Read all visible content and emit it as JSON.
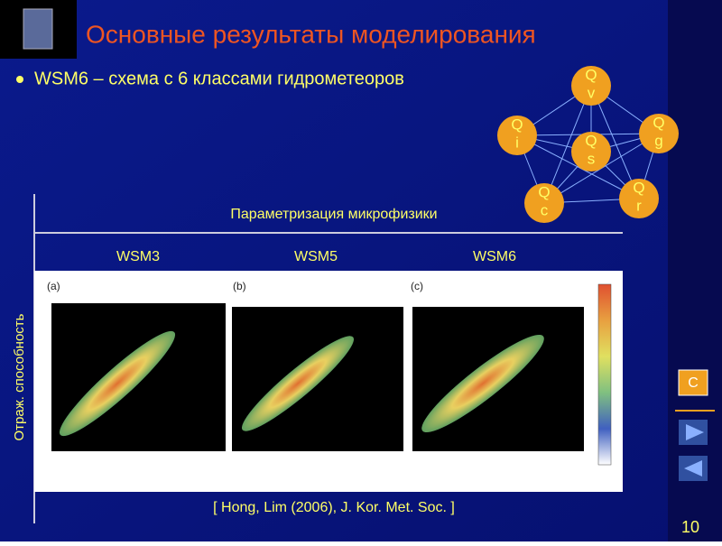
{
  "header": {
    "title": "Основные результаты моделирования"
  },
  "bullet": "WSM6 – схема с 6 классами гидрометеоров",
  "diagram": {
    "nodes": [
      {
        "label": [
          "Q",
          "v"
        ]
      },
      {
        "label": [
          "Q",
          "i"
        ]
      },
      {
        "label": [
          "Q",
          "g"
        ]
      },
      {
        "label": [
          "Q",
          "s"
        ]
      },
      {
        "label": [
          "Q",
          "c"
        ]
      },
      {
        "label": [
          "Q",
          "r"
        ]
      }
    ]
  },
  "figure": {
    "heading": "Параметризация микрофизики",
    "columns": [
      "WSM3",
      "WSM5",
      "WSM6"
    ],
    "panels": [
      "(a)",
      "(b)",
      "(c)"
    ],
    "y_label": "Отраж. способность",
    "citation": "[ Hong, Lim (2006), J. Kor. Met. Soc. ]"
  },
  "nav": {
    "button": "C"
  },
  "page_number": "10"
}
